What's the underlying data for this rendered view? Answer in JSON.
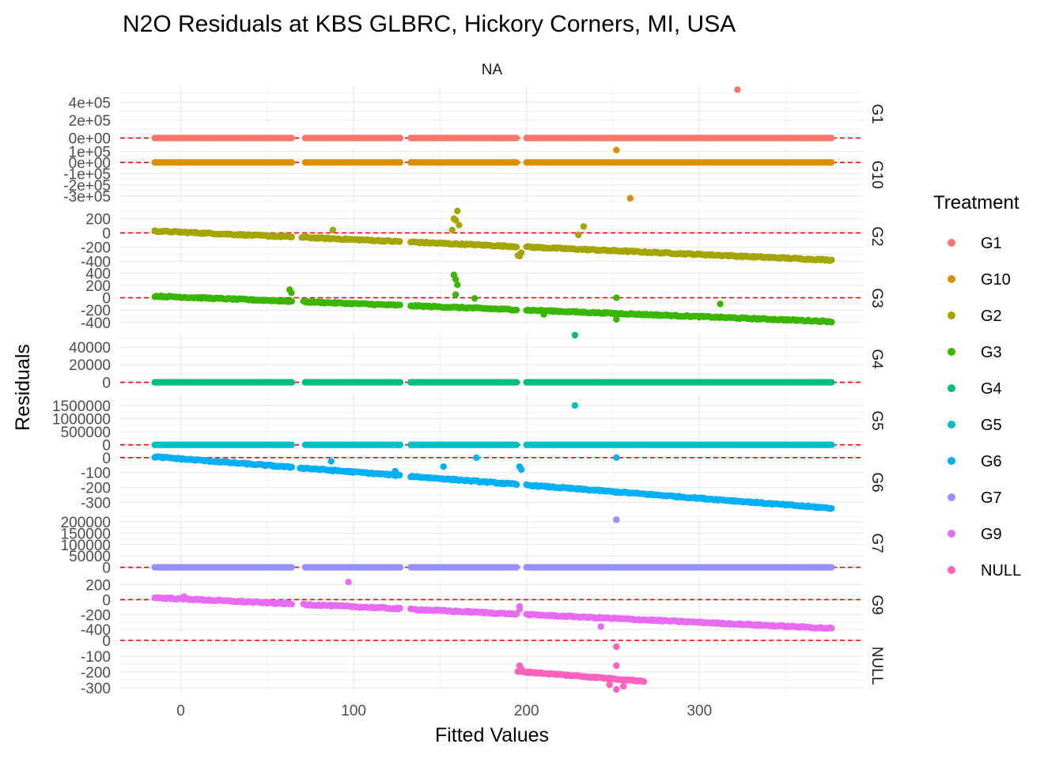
{
  "chart_data": {
    "type": "scatter",
    "title": "N2O Residuals at KBS GLBRC, Hickory Corners, MI, USA",
    "strip_top": "NA",
    "xlabel": "Fitted Values",
    "ylabel": "Residuals",
    "xlim": [
      -35,
      395
    ],
    "x_ticks": [
      {
        "value": 0,
        "label": "0"
      },
      {
        "value": 100,
        "label": "100"
      },
      {
        "value": 200,
        "label": "200"
      },
      {
        "value": 300,
        "label": "300"
      }
    ],
    "reference_line": {
      "y": 0,
      "color": "#ff0000",
      "style": "dashed"
    },
    "grid": true,
    "legend": {
      "title": "Treatment",
      "placement": "right",
      "entries": [
        {
          "label": "G1",
          "color": "#F8766D"
        },
        {
          "label": "G10",
          "color": "#D89000"
        },
        {
          "label": "G2",
          "color": "#A3A500"
        },
        {
          "label": "G3",
          "color": "#39B600"
        },
        {
          "label": "G4",
          "color": "#00BF7D"
        },
        {
          "label": "G5",
          "color": "#00BFC4"
        },
        {
          "label": "G6",
          "color": "#00B0F6"
        },
        {
          "label": "G7",
          "color": "#9590FF"
        },
        {
          "label": "G9",
          "color": "#E76BF3"
        },
        {
          "label": "NULL",
          "color": "#FF62BC"
        }
      ]
    },
    "panels": [
      {
        "name": "G1",
        "color": "#F8766D",
        "ylim": [
          -30000,
          570000
        ],
        "y_ticks": [
          {
            "value": 0,
            "label": "0e+00"
          },
          {
            "value": 200000,
            "label": "2e+05"
          },
          {
            "value": 400000,
            "label": "4e+05"
          }
        ],
        "kind": "flat",
        "segments": [
          [
            -15,
            65
          ],
          [
            72,
            127
          ],
          [
            133,
            195
          ],
          [
            200,
            377
          ]
        ],
        "outliers": [
          {
            "x": 322,
            "y": 540000
          }
        ]
      },
      {
        "name": "G10",
        "color": "#D89000",
        "ylim": [
          -350000,
          130000
        ],
        "y_ticks": [
          {
            "value": -300000,
            "label": "-3e+05"
          },
          {
            "value": -200000,
            "label": "-2e+05"
          },
          {
            "value": -100000,
            "label": "-1e+05"
          },
          {
            "value": 0,
            "label": "0e+00"
          },
          {
            "value": 100000,
            "label": "1e+05"
          }
        ],
        "kind": "flat",
        "segments": [
          [
            -15,
            65
          ],
          [
            72,
            127
          ],
          [
            133,
            195
          ],
          [
            200,
            377
          ]
        ],
        "outliers": [
          {
            "x": 252,
            "y": 110000
          },
          {
            "x": 260,
            "y": -320000
          }
        ]
      },
      {
        "name": "G2",
        "color": "#A3A500",
        "ylim": [
          -430,
          330
        ],
        "y_ticks": [
          {
            "value": -400,
            "label": "-400"
          },
          {
            "value": -200,
            "label": "-200"
          },
          {
            "value": 0,
            "label": "0"
          },
          {
            "value": 200,
            "label": "200"
          }
        ],
        "kind": "trend",
        "segments": [
          [
            -15,
            65
          ],
          [
            70,
            127
          ],
          [
            133,
            195
          ],
          [
            200,
            377
          ]
        ],
        "outliers": [
          {
            "x": 158,
            "y": 200
          },
          {
            "x": 159,
            "y": 180
          },
          {
            "x": 160,
            "y": 310
          },
          {
            "x": 157,
            "y": 40
          },
          {
            "x": 161,
            "y": 110
          },
          {
            "x": 88,
            "y": 40
          },
          {
            "x": 233,
            "y": 90
          },
          {
            "x": 230,
            "y": -30
          },
          {
            "x": 196,
            "y": -330
          },
          {
            "x": 195,
            "y": -320
          },
          {
            "x": 197,
            "y": -280
          }
        ]
      },
      {
        "name": "G3",
        "color": "#39B600",
        "ylim": [
          -440,
          430
        ],
        "y_ticks": [
          {
            "value": -400,
            "label": "-400"
          },
          {
            "value": -200,
            "label": "-200"
          },
          {
            "value": 0,
            "label": "0"
          },
          {
            "value": 200,
            "label": "200"
          },
          {
            "value": 400,
            "label": "400"
          }
        ],
        "kind": "trend",
        "segments": [
          [
            -15,
            65
          ],
          [
            71,
            127
          ],
          [
            133,
            195
          ],
          [
            200,
            377
          ]
        ],
        "outliers": [
          {
            "x": 158,
            "y": 370
          },
          {
            "x": 159,
            "y": 300
          },
          {
            "x": 160,
            "y": 210
          },
          {
            "x": 159,
            "y": 50
          },
          {
            "x": 63,
            "y": 130
          },
          {
            "x": 64,
            "y": 80
          },
          {
            "x": 170,
            "y": -10
          },
          {
            "x": 252,
            "y": 0
          },
          {
            "x": 210,
            "y": -270
          },
          {
            "x": 252,
            "y": -350
          },
          {
            "x": 312,
            "y": -100
          }
        ]
      },
      {
        "name": "G4",
        "color": "#00BF7D",
        "ylim": [
          -4000,
          57000
        ],
        "y_ticks": [
          {
            "value": 0,
            "label": "0"
          },
          {
            "value": 20000,
            "label": "20000"
          },
          {
            "value": 40000,
            "label": "40000"
          }
        ],
        "kind": "flat",
        "segments": [
          [
            -15,
            65
          ],
          [
            72,
            127
          ],
          [
            133,
            195
          ],
          [
            200,
            377
          ]
        ],
        "outliers": [
          {
            "x": 228,
            "y": 53500
          }
        ]
      },
      {
        "name": "G5",
        "color": "#00BFC4",
        "ylim": [
          -100000,
          1950000
        ],
        "y_ticks": [
          {
            "value": 0,
            "label": "0"
          },
          {
            "value": 500000,
            "label": "500000"
          },
          {
            "value": 1000000,
            "label": "1000000"
          },
          {
            "value": 1500000,
            "label": "1500000"
          }
        ],
        "kind": "flat",
        "segments": [
          [
            -15,
            65
          ],
          [
            72,
            127
          ],
          [
            133,
            195
          ],
          [
            200,
            377
          ]
        ],
        "outliers": [
          {
            "x": 228,
            "y": 1500000
          }
        ]
      },
      {
        "name": "G6",
        "color": "#00B0F6",
        "ylim": [
          -345,
          15
        ],
        "y_ticks": [
          {
            "value": -300,
            "label": "-300"
          },
          {
            "value": -200,
            "label": "-200"
          },
          {
            "value": -100,
            "label": "-100"
          },
          {
            "value": 0,
            "label": "0"
          }
        ],
        "kind": "trend6",
        "segments": [
          [
            -15,
            65
          ],
          [
            69,
            127
          ],
          [
            133,
            195
          ],
          [
            200,
            377
          ]
        ],
        "outliers": [
          {
            "x": 171,
            "y": 0
          },
          {
            "x": 252,
            "y": 0
          },
          {
            "x": 87,
            "y": -25
          },
          {
            "x": 152,
            "y": -60
          },
          {
            "x": 196,
            "y": -60
          },
          {
            "x": 197,
            "y": -80
          },
          {
            "x": 124,
            "y": -90
          }
        ]
      },
      {
        "name": "G7",
        "color": "#9590FF",
        "ylim": [
          -12000,
          225000
        ],
        "y_ticks": [
          {
            "value": 0,
            "label": "0"
          },
          {
            "value": 50000,
            "label": "50000"
          },
          {
            "value": 100000,
            "label": "100000"
          },
          {
            "value": 150000,
            "label": "150000"
          },
          {
            "value": 200000,
            "label": "200000"
          }
        ],
        "kind": "flat",
        "segments": [
          [
            -15,
            65
          ],
          [
            72,
            127
          ],
          [
            133,
            195
          ],
          [
            200,
            377
          ]
        ],
        "outliers": [
          {
            "x": 252,
            "y": 210000
          }
        ]
      },
      {
        "name": "G9",
        "color": "#E76BF3",
        "ylim": [
          -430,
          290
        ],
        "y_ticks": [
          {
            "value": -400,
            "label": "-400"
          },
          {
            "value": -200,
            "label": "-200"
          },
          {
            "value": 0,
            "label": "0"
          },
          {
            "value": 200,
            "label": "200"
          }
        ],
        "kind": "trend",
        "segments": [
          [
            -15,
            65
          ],
          [
            71,
            127
          ],
          [
            133,
            195
          ],
          [
            200,
            377
          ]
        ],
        "outliers": [
          {
            "x": 97,
            "y": 235
          },
          {
            "x": 2,
            "y": 40
          },
          {
            "x": 243,
            "y": -360
          },
          {
            "x": 196,
            "y": -90
          },
          {
            "x": 196,
            "y": -130
          }
        ]
      },
      {
        "name": "NULL",
        "color": "#FF62BC",
        "ylim": [
          -330,
          10
        ],
        "y_ticks": [
          {
            "value": -300,
            "label": "-300"
          },
          {
            "value": -200,
            "label": "-200"
          },
          {
            "value": -100,
            "label": "-100"
          },
          {
            "value": 0,
            "label": "0"
          }
        ],
        "kind": "null",
        "segments": [
          [
            195,
            268
          ]
        ],
        "outliers": [
          {
            "x": 252,
            "y": -40
          },
          {
            "x": 252,
            "y": -160
          },
          {
            "x": 252,
            "y": -310
          },
          {
            "x": 196,
            "y": -160
          },
          {
            "x": 197,
            "y": -180
          },
          {
            "x": 248,
            "y": -280
          },
          {
            "x": 256,
            "y": -290
          }
        ]
      }
    ]
  }
}
